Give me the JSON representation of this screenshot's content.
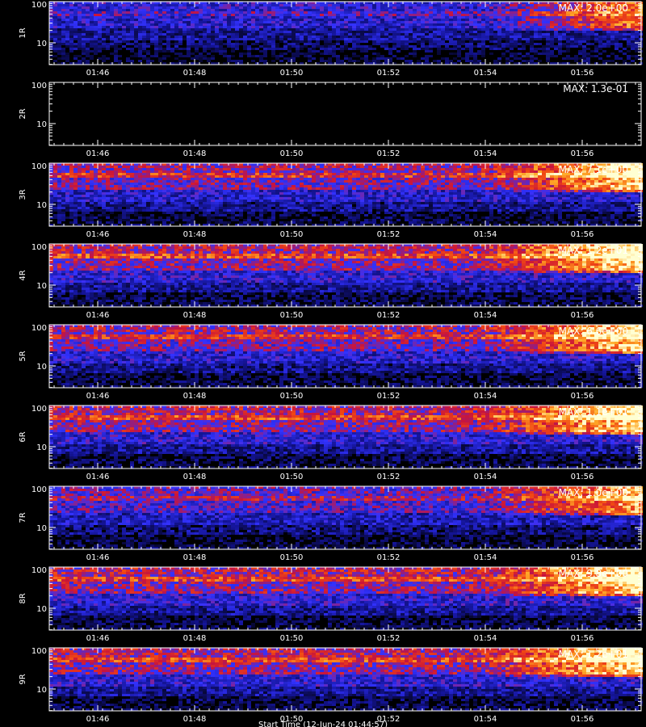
{
  "chart_data": [
    {
      "type": "heatmap",
      "channel": "1R",
      "max_label": "MAX: 2.0e+00",
      "intensity": 0.55,
      "x_ticks": [
        "01:46",
        "01:48",
        "01:50",
        "01:52",
        "01:54",
        "01:56"
      ],
      "y_ticks": [
        "100",
        "10"
      ]
    },
    {
      "type": "heatmap",
      "channel": "2R",
      "max_label": "MAX: 1.3e-01",
      "intensity": 0.0,
      "x_ticks": [
        "01:46",
        "01:48",
        "01:50",
        "01:52",
        "01:54",
        "01:56"
      ],
      "y_ticks": [
        "100",
        "10"
      ]
    },
    {
      "type": "heatmap",
      "channel": "3R",
      "max_label": "MAX: 7.1e+00",
      "intensity": 0.8,
      "x_ticks": [
        "01:46",
        "01:48",
        "01:50",
        "01:52",
        "01:54",
        "01:56"
      ],
      "y_ticks": [
        "100",
        "10"
      ]
    },
    {
      "type": "heatmap",
      "channel": "4R",
      "max_label": "MAX: 1.2e+01",
      "intensity": 0.85,
      "x_ticks": [
        "01:46",
        "01:48",
        "01:50",
        "01:52",
        "01:54",
        "01:56"
      ],
      "y_ticks": [
        "100",
        "10"
      ]
    },
    {
      "type": "heatmap",
      "channel": "5R",
      "max_label": "MAX: 6.6e+00",
      "intensity": 0.8,
      "x_ticks": [
        "01:46",
        "01:48",
        "01:50",
        "01:52",
        "01:54",
        "01:56"
      ],
      "y_ticks": [
        "100",
        "10"
      ]
    },
    {
      "type": "heatmap",
      "channel": "6R",
      "max_label": "MAX: 1.1e+01",
      "intensity": 0.85,
      "x_ticks": [
        "01:46",
        "01:48",
        "01:50",
        "01:52",
        "01:54",
        "01:56"
      ],
      "y_ticks": [
        "100",
        "10"
      ]
    },
    {
      "type": "heatmap",
      "channel": "7R",
      "max_label": "MAX: 1.0e+00",
      "intensity": 0.7,
      "x_ticks": [
        "01:46",
        "01:48",
        "01:50",
        "01:52",
        "01:54",
        "01:56"
      ],
      "y_ticks": [
        "100",
        "10"
      ]
    },
    {
      "type": "heatmap",
      "channel": "8R",
      "max_label": "MAX: 9.8e+00",
      "intensity": 0.85,
      "x_ticks": [
        "01:46",
        "01:48",
        "01:50",
        "01:52",
        "01:54",
        "01:56"
      ],
      "y_ticks": [
        "100",
        "10"
      ]
    },
    {
      "type": "heatmap",
      "channel": "9R",
      "max_label": "MAX: 1.2e+01",
      "intensity": 0.85,
      "x_ticks": [
        "01:46",
        "01:48",
        "01:50",
        "01:52",
        "01:54",
        "01:56"
      ],
      "y_ticks": [
        "100",
        "10"
      ]
    }
  ],
  "x_axis_title": "Start Time (12-Jun-24 01:44:57)",
  "colors": {
    "background": "#000000",
    "axis": "#ffffff"
  }
}
